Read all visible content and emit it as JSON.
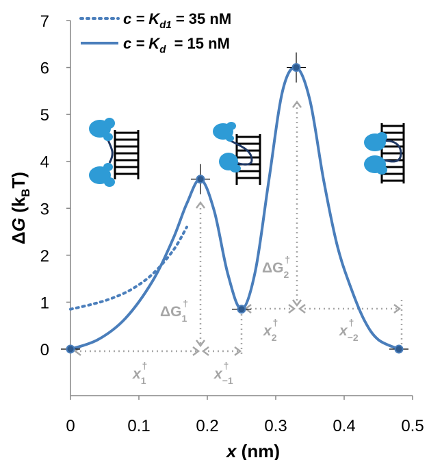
{
  "chart_data": {
    "type": "line",
    "xlabel": "x (nm)",
    "ylabel": "ΔG (kBT)",
    "xlim": [
      0,
      0.5
    ],
    "ylim": [
      0,
      7
    ],
    "x_ticks": [
      "0",
      "0.1",
      "0.2",
      "0.3",
      "0.4",
      "0.5"
    ],
    "y_ticks": [
      "0",
      "1",
      "2",
      "3",
      "4",
      "5",
      "6",
      "7"
    ],
    "grid": false,
    "legend_position": "top-left",
    "colors": {
      "series": "#4a7ebb",
      "annotation": "#a6a6a6",
      "marker_fill": "#2e5a8e"
    },
    "series": [
      {
        "name": "c = Kd1 = 35 nM",
        "style": "dotted",
        "x": [
          0,
          0.03,
          0.06,
          0.09,
          0.12,
          0.15,
          0.17
        ],
        "y": [
          0.85,
          0.95,
          1.08,
          1.28,
          1.6,
          2.1,
          2.6
        ]
      },
      {
        "name": "c = Kd = 15 nM",
        "style": "solid",
        "x": [
          0,
          0.04,
          0.08,
          0.12,
          0.15,
          0.17,
          0.19,
          0.21,
          0.23,
          0.25,
          0.27,
          0.29,
          0.31,
          0.33,
          0.35,
          0.37,
          0.39,
          0.41,
          0.43,
          0.45,
          0.48
        ],
        "y": [
          0,
          0.2,
          0.65,
          1.45,
          2.35,
          3.1,
          3.62,
          2.95,
          1.6,
          0.85,
          1.65,
          3.6,
          5.5,
          6.0,
          5.3,
          3.6,
          2.2,
          1.3,
          0.6,
          0.2,
          0
        ]
      }
    ],
    "points": [
      {
        "x": 0,
        "y": 0
      },
      {
        "x": 0.19,
        "y": 3.62
      },
      {
        "x": 0.25,
        "y": 0.85
      },
      {
        "x": 0.33,
        "y": 6.0
      },
      {
        "x": 0.48,
        "y": 0
      }
    ],
    "legend": {
      "dotted": {
        "prefix": "c = K",
        "sub": "d1",
        "suffix": " = 35 nM"
      },
      "solid": {
        "prefix": "c = K",
        "sub": "d",
        "suffix": "  = 15 nM"
      }
    },
    "annotations": {
      "dG1": {
        "main": "ΔG",
        "sub": "1",
        "sup": "†"
      },
      "dG2": {
        "main": "ΔG",
        "sub": "2",
        "sup": "†"
      },
      "x1": {
        "main": "x",
        "sub": "1",
        "sup": "†"
      },
      "xm1": {
        "main": "x",
        "sub": "−1",
        "sup": "†"
      },
      "x2": {
        "main": "x",
        "sub": "2",
        "sup": "†"
      },
      "xm2": {
        "main": "x",
        "sub": "−2",
        "sup": "†"
      }
    }
  }
}
